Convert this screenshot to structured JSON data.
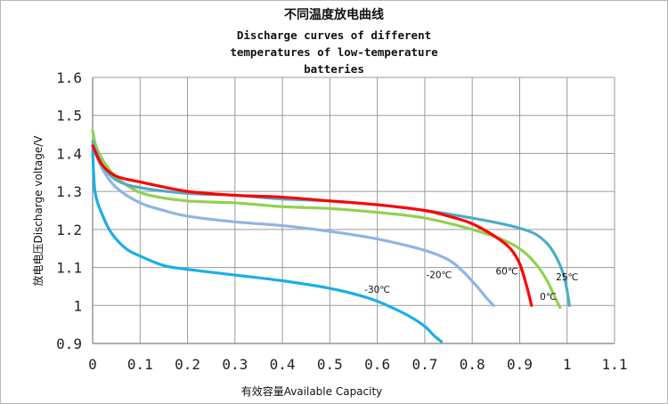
{
  "chart_data": {
    "type": "line",
    "title": "不同温度放电曲线",
    "subtitle": "Discharge curves of different temperatures of low-temperature batteries",
    "xlabel": "有效容量Available Capacity",
    "ylabel": "放电电压Discharge voltage/V",
    "xlim": [
      0,
      1.1
    ],
    "ylim": [
      0.9,
      1.6
    ],
    "grid": true,
    "x_ticks": [
      "0",
      "0.1",
      "0.2",
      "0.3",
      "0.4",
      "0.5",
      "0.6",
      "0.7",
      "0.8",
      "0.9",
      "1",
      "1.1"
    ],
    "y_ticks": [
      "0.9",
      "1",
      "1.1",
      "1.2",
      "1.3",
      "1.4",
      "1.5",
      "1.6"
    ],
    "series": [
      {
        "name": "-30℃",
        "color": "#1aaee8",
        "x": [
          0,
          0.005,
          0.02,
          0.04,
          0.07,
          0.1,
          0.15,
          0.2,
          0.3,
          0.4,
          0.5,
          0.58,
          0.63,
          0.67,
          0.7,
          0.72,
          0.735
        ],
        "y": [
          1.41,
          1.3,
          1.24,
          1.19,
          1.15,
          1.13,
          1.105,
          1.095,
          1.08,
          1.065,
          1.045,
          1.02,
          0.995,
          0.97,
          0.945,
          0.92,
          0.905
        ]
      },
      {
        "name": "-20℃",
        "color": "#8eb4e3",
        "x": [
          0,
          0.02,
          0.05,
          0.1,
          0.15,
          0.2,
          0.3,
          0.4,
          0.5,
          0.6,
          0.7,
          0.75,
          0.78,
          0.81,
          0.83,
          0.845
        ],
        "y": [
          1.42,
          1.36,
          1.31,
          1.27,
          1.25,
          1.235,
          1.22,
          1.21,
          1.195,
          1.175,
          1.145,
          1.12,
          1.09,
          1.05,
          1.02,
          1.0
        ]
      },
      {
        "name": "0℃",
        "color": "#92d050",
        "x": [
          0,
          0.01,
          0.04,
          0.08,
          0.12,
          0.2,
          0.3,
          0.4,
          0.5,
          0.6,
          0.7,
          0.8,
          0.87,
          0.91,
          0.94,
          0.96,
          0.975,
          0.985
        ],
        "y": [
          1.46,
          1.41,
          1.35,
          1.31,
          1.29,
          1.275,
          1.27,
          1.26,
          1.255,
          1.245,
          1.23,
          1.2,
          1.17,
          1.14,
          1.1,
          1.06,
          1.02,
          0.995
        ]
      },
      {
        "name": "25℃",
        "color": "#4bacc6",
        "x": [
          0,
          0.02,
          0.05,
          0.1,
          0.2,
          0.3,
          0.4,
          0.5,
          0.6,
          0.7,
          0.8,
          0.88,
          0.93,
          0.96,
          0.98,
          0.995,
          1.005
        ],
        "y": [
          1.43,
          1.37,
          1.33,
          1.31,
          1.295,
          1.29,
          1.28,
          1.275,
          1.265,
          1.25,
          1.23,
          1.21,
          1.19,
          1.16,
          1.12,
          1.07,
          1.0
        ]
      },
      {
        "name": "60℃",
        "color": "#ff0000",
        "x": [
          0,
          0.02,
          0.05,
          0.1,
          0.2,
          0.3,
          0.4,
          0.5,
          0.6,
          0.7,
          0.75,
          0.8,
          0.85,
          0.88,
          0.9,
          0.915,
          0.925
        ],
        "y": [
          1.42,
          1.37,
          1.34,
          1.325,
          1.3,
          1.29,
          1.285,
          1.275,
          1.265,
          1.25,
          1.235,
          1.215,
          1.18,
          1.15,
          1.11,
          1.05,
          1.0
        ]
      }
    ],
    "annotations": [
      {
        "text": "-30℃",
        "x": 0.6,
        "y": 1.033
      },
      {
        "text": "-20℃",
        "x": 0.73,
        "y": 1.072
      },
      {
        "text": "60℃",
        "x": 0.873,
        "y": 1.081
      },
      {
        "text": "0℃",
        "x": 0.96,
        "y": 1.015
      },
      {
        "text": "25℃",
        "x": 1.0,
        "y": 1.066
      }
    ]
  }
}
